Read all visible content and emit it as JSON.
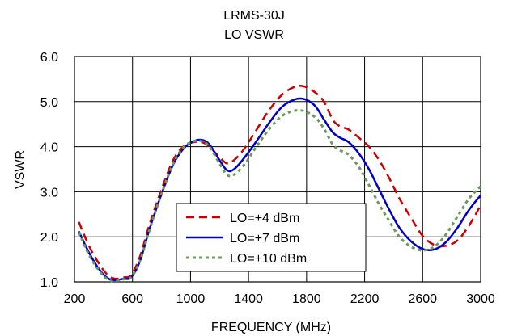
{
  "chart_data": {
    "type": "line",
    "title": "LRMS-30J",
    "subtitle": "LO VSWR",
    "xlabel": "FREQUENCY (MHz)",
    "ylabel": "VSWR",
    "xlim": [
      200,
      3000
    ],
    "ylim": [
      1.0,
      6.0
    ],
    "xticks": [
      200,
      600,
      1000,
      1400,
      1800,
      2200,
      2600,
      3000
    ],
    "yticks": [
      1.0,
      2.0,
      3.0,
      4.0,
      5.0,
      6.0
    ],
    "ytick_labels": [
      "1.0",
      "2.0",
      "3.0",
      "4.0",
      "5.0",
      "6.0"
    ],
    "grid": "horizontal and vertical",
    "legend_position": "lower-center",
    "series": [
      {
        "name": "LO=+4 dBm",
        "color": "#cc0000",
        "style": "dashed",
        "x": [
          230,
          300,
          370,
          430,
          480,
          540,
          590,
          650,
          720,
          800,
          880,
          950,
          1020,
          1080,
          1130,
          1190,
          1250,
          1300,
          1370,
          1450,
          1540,
          1630,
          1720,
          1790,
          1860,
          1920,
          1980,
          2030,
          2090,
          2160,
          2230,
          2300,
          2370,
          2440,
          2520,
          2600,
          2680,
          2760,
          2840,
          2920,
          3000
        ],
        "y": [
          2.33,
          1.8,
          1.4,
          1.15,
          1.07,
          1.1,
          1.15,
          1.55,
          2.3,
          3.05,
          3.7,
          4.0,
          4.1,
          4.1,
          4.0,
          3.8,
          3.63,
          3.7,
          3.95,
          4.35,
          4.8,
          5.15,
          5.33,
          5.33,
          5.2,
          5.0,
          4.6,
          4.45,
          4.38,
          4.2,
          4.0,
          3.7,
          3.3,
          2.85,
          2.42,
          2.02,
          1.82,
          1.8,
          1.92,
          2.25,
          2.7
        ]
      },
      {
        "name": "LO=+7 dBm",
        "color": "#0000cc",
        "style": "solid",
        "x": [
          230,
          300,
          370,
          430,
          480,
          540,
          590,
          650,
          720,
          800,
          880,
          950,
          1020,
          1080,
          1130,
          1190,
          1250,
          1300,
          1370,
          1450,
          1540,
          1630,
          1720,
          1790,
          1860,
          1920,
          1980,
          2030,
          2090,
          2160,
          2230,
          2300,
          2370,
          2440,
          2520,
          2600,
          2680,
          2760,
          2840,
          2920,
          3000
        ],
        "y": [
          2.12,
          1.65,
          1.28,
          1.08,
          1.04,
          1.07,
          1.1,
          1.45,
          2.2,
          2.95,
          3.6,
          3.95,
          4.12,
          4.15,
          4.05,
          3.75,
          3.48,
          3.5,
          3.75,
          4.1,
          4.52,
          4.88,
          5.05,
          5.05,
          4.9,
          4.6,
          4.32,
          4.2,
          4.1,
          3.85,
          3.5,
          3.05,
          2.6,
          2.2,
          1.9,
          1.73,
          1.72,
          1.88,
          2.2,
          2.6,
          2.92
        ]
      },
      {
        "name": "LO=+10 dBm",
        "color": "#6a9a5a",
        "style": "dotted",
        "x": [
          230,
          300,
          370,
          430,
          480,
          540,
          590,
          650,
          720,
          800,
          880,
          950,
          1020,
          1080,
          1130,
          1190,
          1250,
          1300,
          1370,
          1450,
          1540,
          1630,
          1720,
          1790,
          1860,
          1920,
          1980,
          2030,
          2090,
          2160,
          2230,
          2300,
          2370,
          2440,
          2520,
          2600,
          2680,
          2760,
          2840,
          2920,
          3000
        ],
        "y": [
          2.1,
          1.6,
          1.25,
          1.05,
          1.02,
          1.06,
          1.1,
          1.45,
          2.18,
          2.95,
          3.62,
          3.98,
          4.12,
          4.12,
          4.0,
          3.68,
          3.38,
          3.38,
          3.6,
          3.98,
          4.38,
          4.68,
          4.8,
          4.78,
          4.65,
          4.4,
          4.05,
          3.92,
          3.82,
          3.55,
          3.15,
          2.72,
          2.35,
          2.0,
          1.78,
          1.7,
          1.78,
          2.05,
          2.45,
          2.85,
          3.12
        ]
      }
    ]
  }
}
